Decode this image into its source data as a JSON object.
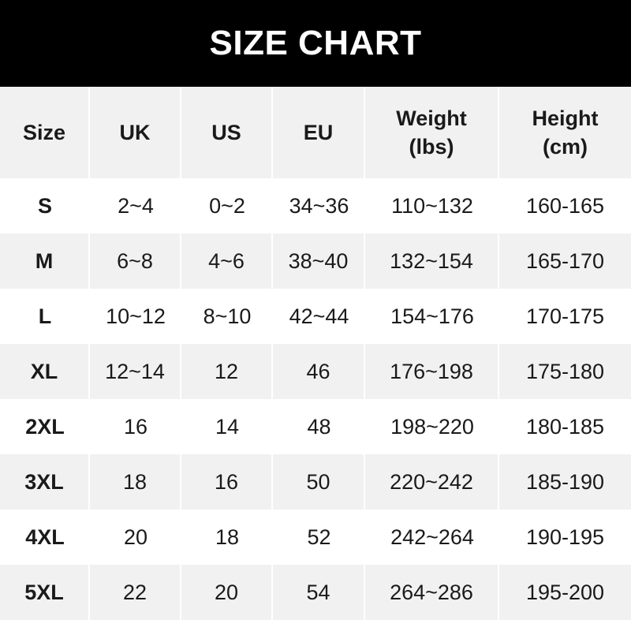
{
  "title": "SIZE CHART",
  "headers": [
    "Size",
    "UK",
    "US",
    "EU",
    "Weight\n(lbs)",
    "Height\n(cm)"
  ],
  "rows": [
    [
      "S",
      "2~4",
      "0~2",
      "34~36",
      "110~132",
      "160-165"
    ],
    [
      "M",
      "6~8",
      "4~6",
      "38~40",
      "132~154",
      "165-170"
    ],
    [
      "L",
      "10~12",
      "8~10",
      "42~44",
      "154~176",
      "170-175"
    ],
    [
      "XL",
      "12~14",
      "12",
      "46",
      "176~198",
      "175-180"
    ],
    [
      "2XL",
      "16",
      "14",
      "48",
      "198~220",
      "180-185"
    ],
    [
      "3XL",
      "18",
      "16",
      "50",
      "220~242",
      "185-190"
    ],
    [
      "4XL",
      "20",
      "18",
      "52",
      "242~264",
      "190-195"
    ],
    [
      "5XL",
      "22",
      "20",
      "54",
      "264~286",
      "195-200"
    ]
  ],
  "colors": {
    "banner": "#000000",
    "stripe": "#f1f1f1",
    "text": "#1a1a1a"
  }
}
